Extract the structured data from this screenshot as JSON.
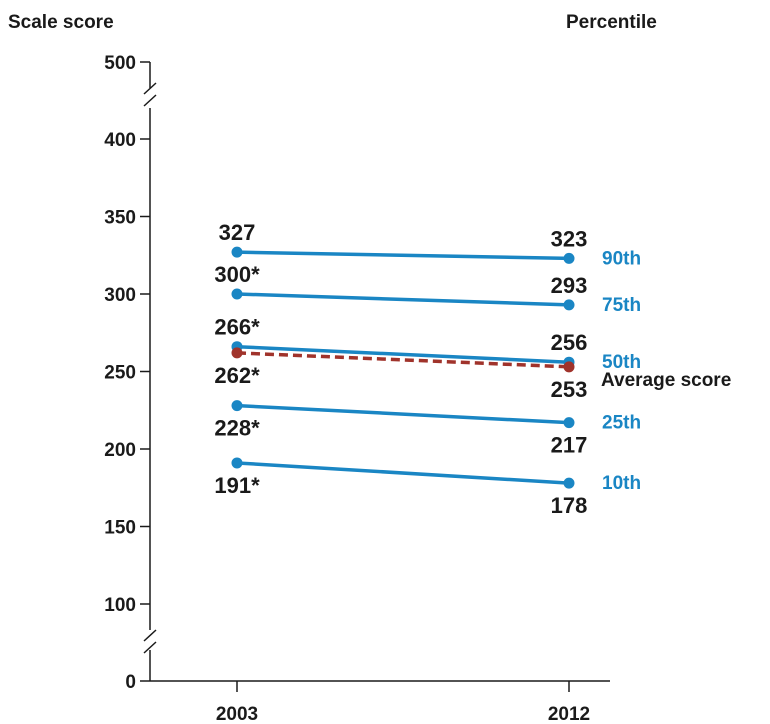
{
  "chart_data": {
    "type": "line",
    "y_axis_title": "Scale score",
    "legend_header": "Percentile",
    "x": [
      "2003",
      "2012"
    ],
    "y_ticks": [
      "0",
      "100",
      "150",
      "200",
      "250",
      "300",
      "350",
      "400",
      "500"
    ],
    "y_axis_break": true,
    "series": [
      {
        "name": "90th",
        "values": [
          327,
          323
        ],
        "labels": [
          "327",
          "323"
        ],
        "kind": "percentile"
      },
      {
        "name": "75th",
        "values": [
          300,
          293
        ],
        "labels": [
          "300*",
          "293"
        ],
        "kind": "percentile"
      },
      {
        "name": "50th",
        "values": [
          266,
          256
        ],
        "labels": [
          "266*",
          "256"
        ],
        "kind": "percentile"
      },
      {
        "name": "Average score",
        "values": [
          262,
          253
        ],
        "labels": [
          "262*",
          "253"
        ],
        "kind": "average"
      },
      {
        "name": "25th",
        "values": [
          228,
          217
        ],
        "labels": [
          "228*",
          "217"
        ],
        "kind": "percentile"
      },
      {
        "name": "10th",
        "values": [
          191,
          178
        ],
        "labels": [
          "191*",
          "178"
        ],
        "kind": "percentile"
      }
    ],
    "colors": {
      "percentile": "#1a86c4",
      "average": "#a0332b",
      "text": "#1a1a1a",
      "axis": "#1a1a1a"
    }
  }
}
